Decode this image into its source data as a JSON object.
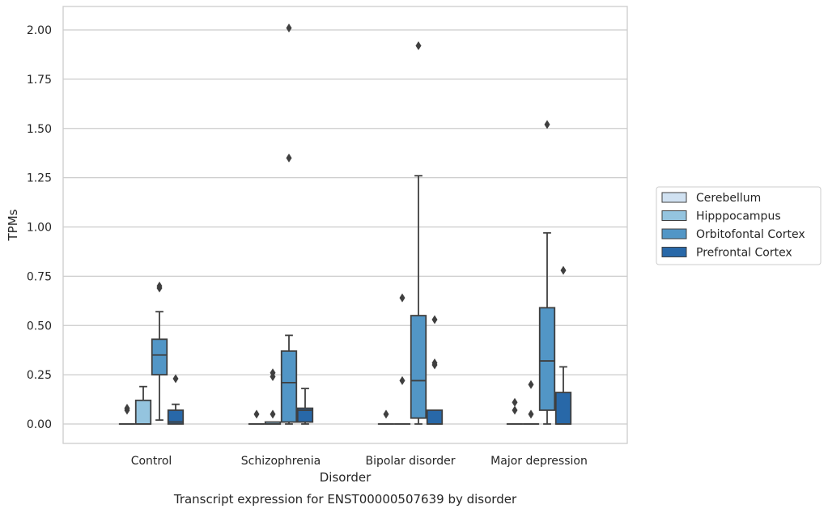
{
  "chart_data": {
    "type": "box",
    "title": "",
    "caption": "Transcript expression for ENST00000507639 by disorder",
    "xlabel": "Disorder",
    "ylabel": "TPMs",
    "ylim": [
      -0.1,
      2.11
    ],
    "yticks": [
      0.0,
      0.25,
      0.5,
      0.75,
      1.0,
      1.25,
      1.5,
      1.75,
      2.0
    ],
    "ytick_labels": [
      "0.00",
      "0.25",
      "0.50",
      "0.75",
      "1.00",
      "1.25",
      "1.50",
      "1.75",
      "2.00"
    ],
    "grid": "horizontal",
    "legend_position": "right",
    "categories": [
      "Control",
      "Schizophrenia",
      "Bipolar disorder",
      "Major depression"
    ],
    "series": [
      {
        "name": "Cerebellum",
        "color": "#d0e1f1",
        "boxes": [
          {
            "whislo": 0.0,
            "q1": 0.0,
            "med": 0.0,
            "q3": 0.0,
            "whishi": 0.0,
            "fliers": [
              0.07,
              0.08
            ]
          },
          {
            "whislo": 0.0,
            "q1": 0.0,
            "med": 0.0,
            "q3": 0.0,
            "whishi": 0.0,
            "fliers": [
              0.05
            ]
          },
          {
            "whislo": 0.0,
            "q1": 0.0,
            "med": 0.0,
            "q3": 0.0,
            "whishi": 0.0,
            "fliers": [
              0.05
            ]
          },
          {
            "whislo": 0.0,
            "q1": 0.0,
            "med": 0.0,
            "q3": 0.0,
            "whishi": 0.0,
            "fliers": [
              0.07,
              0.11
            ]
          }
        ]
      },
      {
        "name": "Hipppocampus",
        "color": "#94c4df",
        "boxes": [
          {
            "whislo": 0.0,
            "q1": 0.0,
            "med": 0.0,
            "q3": 0.12,
            "whishi": 0.19,
            "fliers": []
          },
          {
            "whislo": 0.0,
            "q1": 0.0,
            "med": 0.0,
            "q3": 0.01,
            "whishi": 0.01,
            "fliers": [
              0.05,
              0.24,
              0.26
            ]
          },
          {
            "whislo": 0.0,
            "q1": 0.0,
            "med": 0.0,
            "q3": 0.0,
            "whishi": 0.0,
            "fliers": [
              0.22,
              0.64
            ]
          },
          {
            "whislo": 0.0,
            "q1": 0.0,
            "med": 0.0,
            "q3": 0.0,
            "whishi": 0.0,
            "fliers": [
              0.05,
              0.2
            ]
          }
        ]
      },
      {
        "name": "Orbitofontal Cortex",
        "color": "#5296c6",
        "boxes": [
          {
            "whislo": 0.02,
            "q1": 0.25,
            "med": 0.35,
            "q3": 0.43,
            "whishi": 0.57,
            "fliers": [
              0.69,
              0.7
            ]
          },
          {
            "whislo": 0.0,
            "q1": 0.01,
            "med": 0.21,
            "q3": 0.37,
            "whishi": 0.45,
            "fliers": [
              1.35,
              2.01
            ]
          },
          {
            "whislo": 0.0,
            "q1": 0.03,
            "med": 0.22,
            "q3": 0.55,
            "whishi": 1.26,
            "fliers": [
              1.92
            ]
          },
          {
            "whislo": 0.0,
            "q1": 0.07,
            "med": 0.32,
            "q3": 0.59,
            "whishi": 0.97,
            "fliers": [
              1.52
            ]
          }
        ]
      },
      {
        "name": "Prefrontal Cortex",
        "color": "#2868a8",
        "boxes": [
          {
            "whislo": 0.0,
            "q1": 0.0,
            "med": 0.01,
            "q3": 0.07,
            "whishi": 0.1,
            "fliers": [
              0.23
            ]
          },
          {
            "whislo": 0.0,
            "q1": 0.01,
            "med": 0.07,
            "q3": 0.08,
            "whishi": 0.18,
            "fliers": []
          },
          {
            "whislo": 0.0,
            "q1": 0.0,
            "med": 0.0,
            "q3": 0.07,
            "whishi": 0.07,
            "fliers": [
              0.3,
              0.31,
              0.53
            ]
          },
          {
            "whislo": 0.0,
            "q1": 0.0,
            "med": 0.0,
            "q3": 0.16,
            "whishi": 0.29,
            "fliers": [
              0.78
            ]
          }
        ]
      }
    ]
  }
}
